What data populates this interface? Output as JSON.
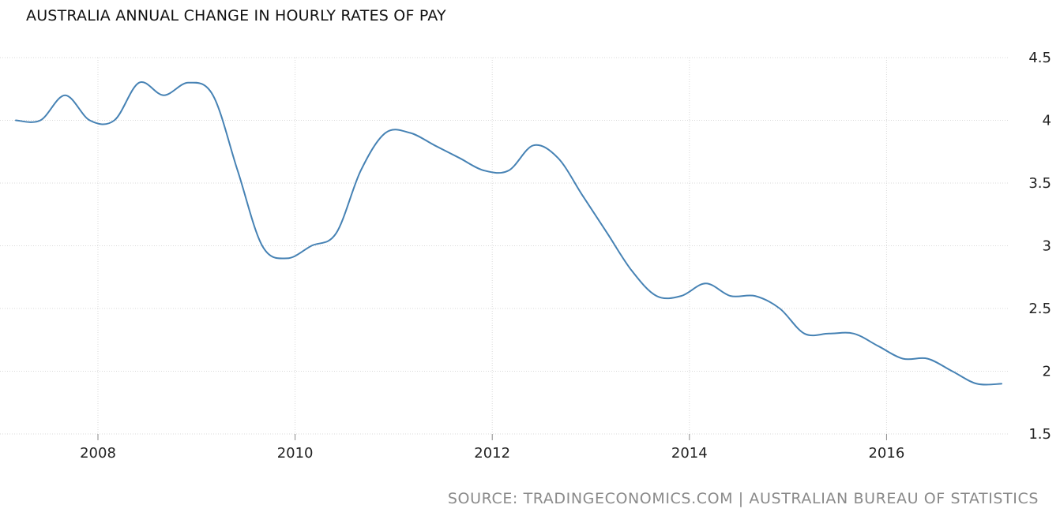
{
  "chart_data": {
    "type": "line",
    "title": "AUSTRALIA ANNUAL CHANGE IN HOURLY RATES OF PAY",
    "source": "SOURCE: TRADINGECONOMICS.COM | AUSTRALIAN BUREAU OF STATISTICS",
    "xlabel": "",
    "ylabel": "",
    "x_ticks": [
      "2008",
      "2010",
      "2012",
      "2014",
      "2016"
    ],
    "y_ticks": [
      "1.5",
      "2",
      "2.5",
      "3",
      "3.5",
      "4",
      "4.5"
    ],
    "ylim": [
      1.5,
      4.5
    ],
    "xlim": [
      "2007-03",
      "2017-03"
    ],
    "grid": true,
    "y_axis_position": "right",
    "line_color": "#4682b4",
    "series": [
      {
        "x": [
          "2007-03",
          "2007-06",
          "2007-09",
          "2007-12",
          "2008-03",
          "2008-06",
          "2008-09",
          "2008-12",
          "2009-03",
          "2009-06",
          "2009-09",
          "2009-12",
          "2010-03",
          "2010-06",
          "2010-09",
          "2010-12",
          "2011-03",
          "2011-06",
          "2011-09",
          "2011-12",
          "2012-03",
          "2012-06",
          "2012-09",
          "2012-12",
          "2013-03",
          "2013-06",
          "2013-09",
          "2013-12",
          "2014-03",
          "2014-06",
          "2014-09",
          "2014-12",
          "2015-03",
          "2015-06",
          "2015-09",
          "2015-12",
          "2016-03",
          "2016-06",
          "2016-09",
          "2016-12",
          "2017-03"
        ],
        "values": [
          4.0,
          4.0,
          4.2,
          4.0,
          4.0,
          4.3,
          4.2,
          4.3,
          4.2,
          3.6,
          3.0,
          2.9,
          3.0,
          3.1,
          3.6,
          3.9,
          3.9,
          3.8,
          3.7,
          3.6,
          3.6,
          3.8,
          3.7,
          3.4,
          3.1,
          2.8,
          2.6,
          2.6,
          2.7,
          2.6,
          2.6,
          2.5,
          2.3,
          2.3,
          2.3,
          2.2,
          2.1,
          2.1,
          2.0,
          1.9,
          1.9
        ]
      }
    ]
  }
}
